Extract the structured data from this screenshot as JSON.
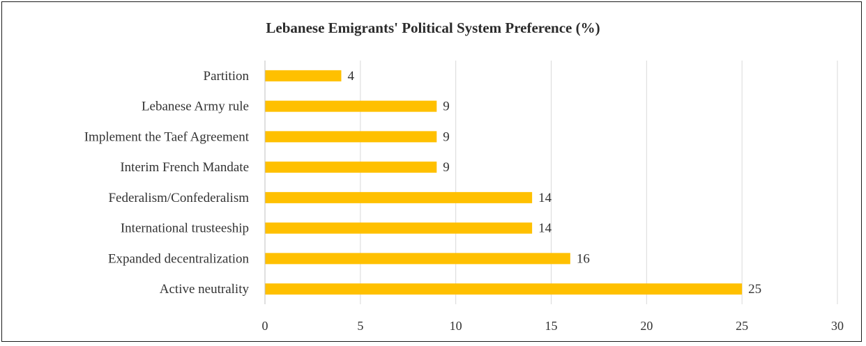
{
  "chart_data": {
    "type": "bar",
    "orientation": "horizontal",
    "title": "Lebanese Emigrants' Political System Preference (%)",
    "categories": [
      "Partition",
      "Lebanese Army rule",
      "Implement the Taef Agreement",
      "Interim French Mandate",
      "Federalism/Confederalism",
      "International trusteeship",
      "Expanded decentralization",
      "Active neutrality"
    ],
    "values": [
      4,
      9,
      9,
      9,
      14,
      14,
      16,
      25
    ],
    "xlim": [
      0,
      30
    ],
    "xticks": [
      0,
      5,
      10,
      15,
      20,
      25,
      30
    ],
    "grid": true,
    "bar_color": "#FFC000",
    "grid_color": "#d9d9d9"
  }
}
